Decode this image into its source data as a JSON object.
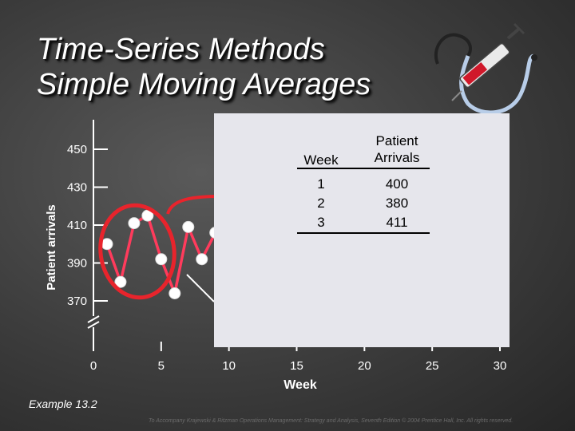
{
  "title_line1": "Time-Series Methods",
  "title_line2": "Simple Moving Averages",
  "example_label": "Example 13.2",
  "footer_text": "To Accompany Krajewski & Ritzman Operations Management: Strategy and Analysis, Seventh Edition © 2004 Prentice Hall, Inc. All rights reserved.",
  "table": {
    "header_week": "Week",
    "header_arrivals_line1": "Patient",
    "header_arrivals_line2": "Arrivals",
    "rows": [
      {
        "week": "1",
        "arrivals": "400"
      },
      {
        "week": "2",
        "arrivals": "380"
      },
      {
        "week": "3",
        "arrivals": "411"
      }
    ]
  },
  "colors": {
    "series": "#ff3b5c",
    "highlight": "#e8242c",
    "panel": "#e6e6ec",
    "axis": "#ffffff"
  },
  "chart_data": {
    "type": "line",
    "title": "",
    "xlabel": "Week",
    "ylabel": "Patient arrivals",
    "xlim": [
      0,
      30
    ],
    "ylim": [
      370,
      450
    ],
    "x_ticks": [
      0,
      5,
      10,
      15,
      20,
      25,
      30
    ],
    "x_tick_labels": [
      "0",
      "5",
      "10",
      "15",
      "20",
      "25",
      "30"
    ],
    "y_ticks": [
      370,
      390,
      410,
      430,
      450
    ],
    "y_tick_labels": [
      "370",
      "390",
      "410",
      "430",
      "450"
    ],
    "series": [
      {
        "name": "Patient arrivals",
        "x": [
          1,
          2,
          3,
          4,
          5,
          6,
          7,
          8,
          9
        ],
        "values": [
          400,
          380,
          411,
          415,
          392,
          374,
          409,
          392,
          406
        ]
      }
    ],
    "annotations": [
      "Weeks 1-3 circled and linked to data table"
    ]
  }
}
